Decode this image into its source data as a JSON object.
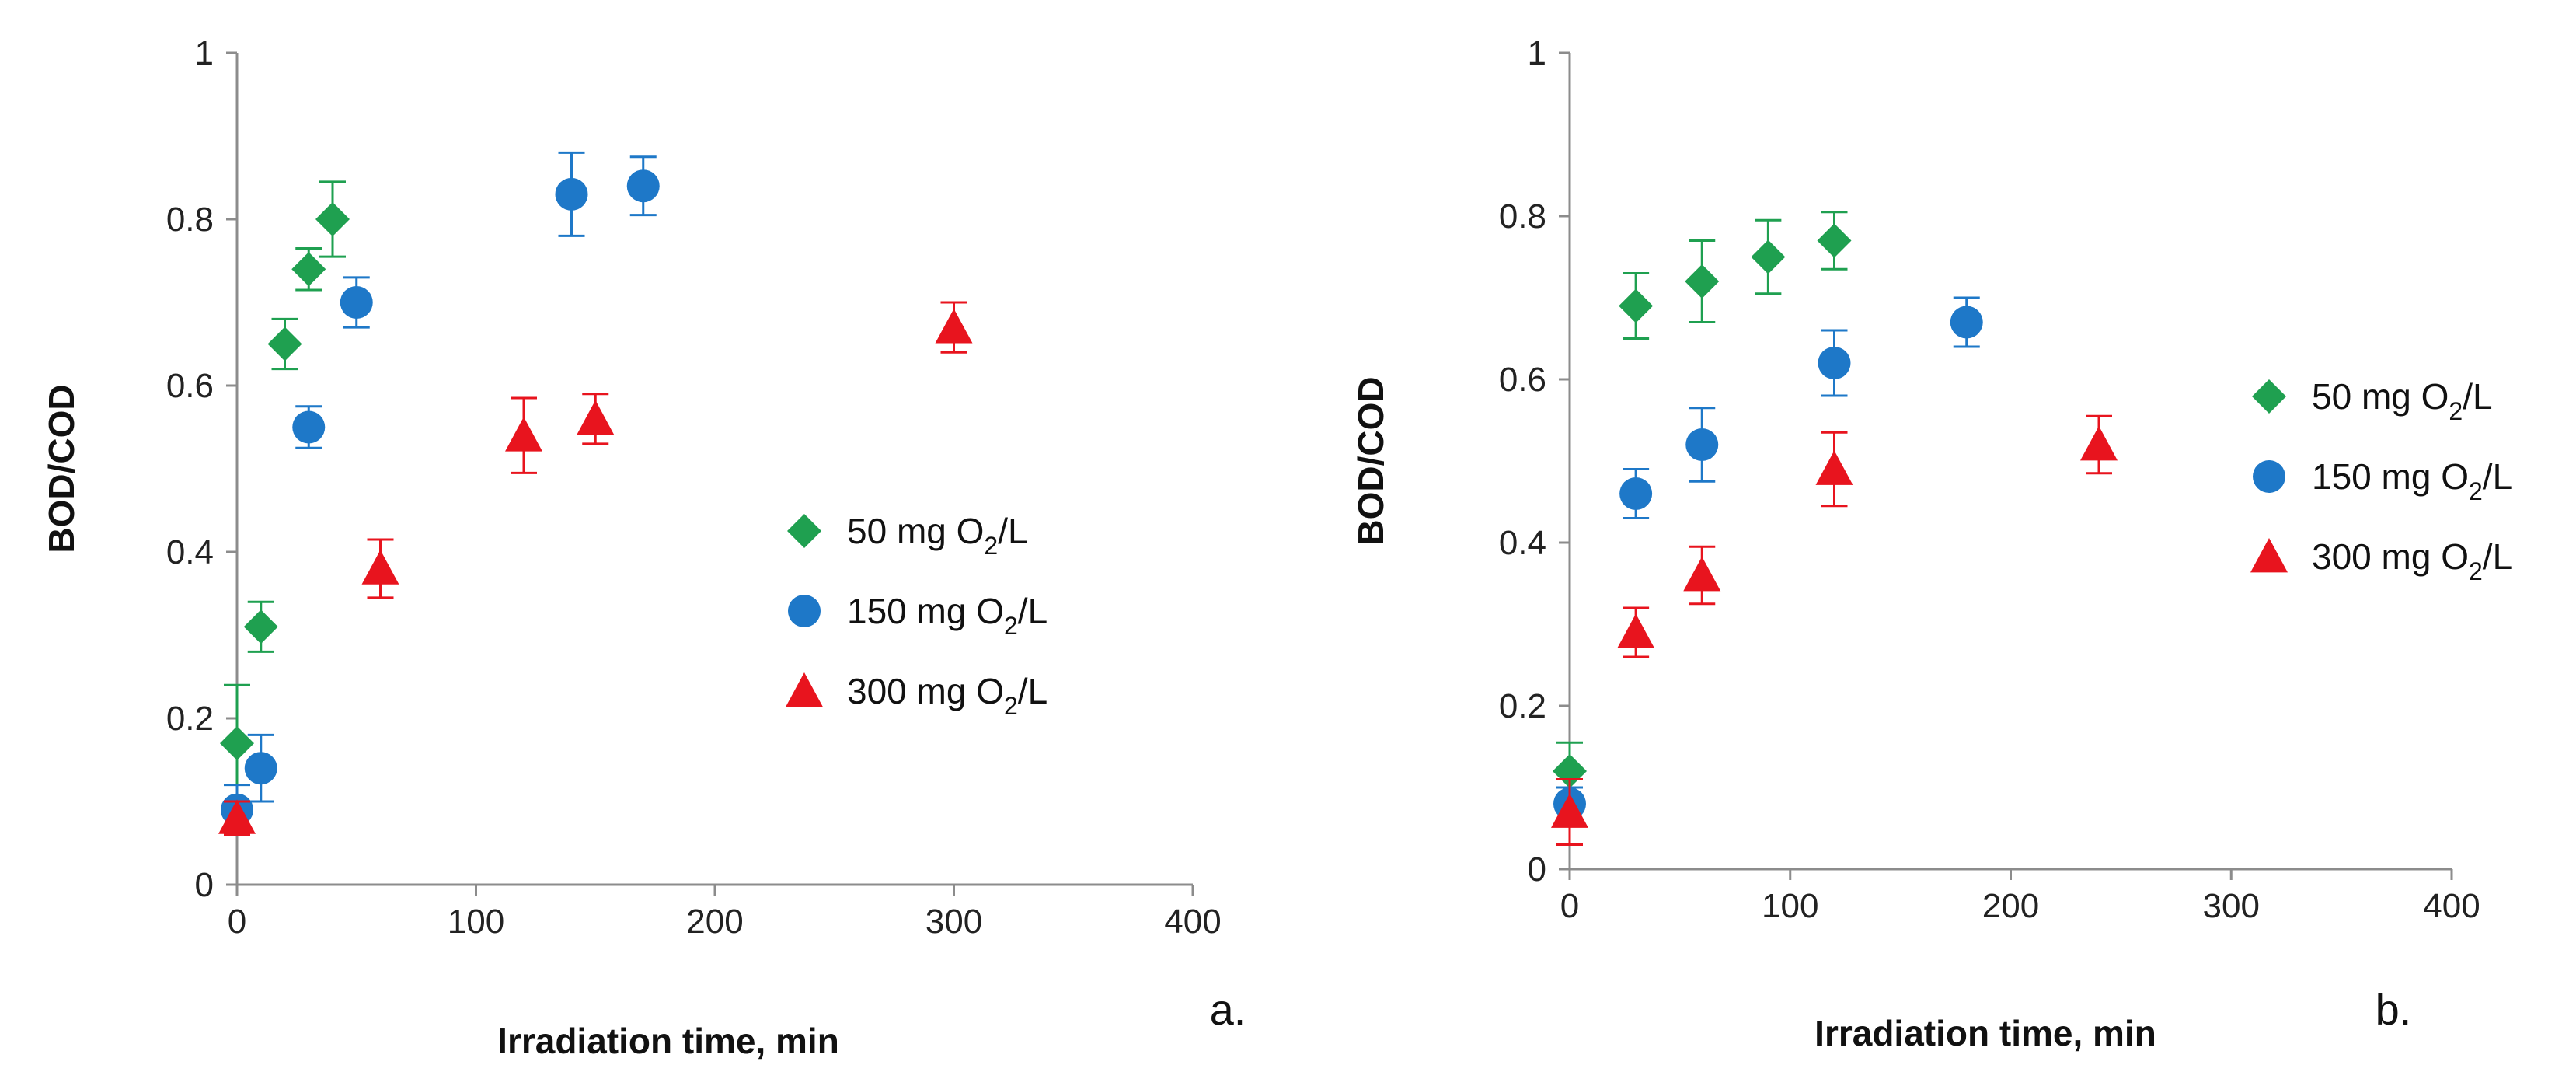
{
  "chart_data": [
    {
      "type": "scatter",
      "panel_label": "a.",
      "xlabel": "Irradiation time, min",
      "ylabel": "BOD/COD",
      "xlim": [
        0,
        400
      ],
      "ylim": [
        0,
        1
      ],
      "xticks": [
        "0",
        "100",
        "200",
        "300",
        "400"
      ],
      "yticks": [
        "0",
        "0.2",
        "0.4",
        "0.6",
        "0.8",
        "1"
      ],
      "legend_position": "center-right",
      "series": [
        {
          "name": "50 mg O2/L",
          "label_prefix": "50 mg O",
          "label_sub": "2",
          "label_suffix": "/L",
          "marker": "diamond",
          "color": "#1fa050",
          "x": [
            0,
            10,
            20,
            30,
            40
          ],
          "y": [
            0.17,
            0.31,
            0.65,
            0.74,
            0.8
          ],
          "err": [
            0.07,
            0.03,
            0.03,
            0.025,
            0.045
          ]
        },
        {
          "name": "150 mg O2/L",
          "label_prefix": "150 mg O",
          "label_sub": "2",
          "label_suffix": "/L",
          "marker": "circle",
          "color": "#1e78c8",
          "x": [
            0,
            10,
            30,
            50,
            140,
            170
          ],
          "y": [
            0.09,
            0.14,
            0.55,
            0.7,
            0.83,
            0.84
          ],
          "err": [
            0.03,
            0.04,
            0.025,
            0.03,
            0.05,
            0.035
          ]
        },
        {
          "name": "300 mg O2/L",
          "label_prefix": "300 mg O",
          "label_sub": "2",
          "label_suffix": "/L",
          "marker": "triangle",
          "color": "#e8141e",
          "x": [
            0,
            60,
            120,
            150,
            300
          ],
          "y": [
            0.08,
            0.38,
            0.54,
            0.56,
            0.67
          ],
          "err": [
            0.02,
            0.035,
            0.045,
            0.03,
            0.03
          ]
        }
      ]
    },
    {
      "type": "scatter",
      "panel_label": "b.",
      "xlabel": "Irradiation  time, min",
      "ylabel": "BOD/COD",
      "xlim": [
        0,
        400
      ],
      "ylim": [
        0,
        1
      ],
      "xticks": [
        "0",
        "100",
        "200",
        "300",
        "400"
      ],
      "yticks": [
        "0",
        "0.2",
        "0.4",
        "0.6",
        "0.8",
        "1"
      ],
      "legend_position": "center-right",
      "series": [
        {
          "name": "50 mg O2/L",
          "label_prefix": "50 mg O",
          "label_sub": "2",
          "label_suffix": "/L",
          "marker": "diamond",
          "color": "#1fa050",
          "x": [
            0,
            30,
            60,
            90,
            120
          ],
          "y": [
            0.12,
            0.69,
            0.72,
            0.75,
            0.77
          ],
          "err": [
            0.035,
            0.04,
            0.05,
            0.045,
            0.035
          ]
        },
        {
          "name": "150 mg O2/L",
          "label_prefix": "150 mg O",
          "label_sub": "2",
          "label_suffix": "/L",
          "marker": "circle",
          "color": "#1e78c8",
          "x": [
            0,
            30,
            60,
            120,
            180
          ],
          "y": [
            0.08,
            0.46,
            0.52,
            0.62,
            0.67
          ],
          "err": [
            0.02,
            0.03,
            0.045,
            0.04,
            0.03
          ]
        },
        {
          "name": "300 mg O2/L",
          "label_prefix": "300 mg O",
          "label_sub": "2",
          "label_suffix": "/L",
          "marker": "triangle",
          "color": "#e8141e",
          "x": [
            0,
            30,
            60,
            120,
            240
          ],
          "y": [
            0.07,
            0.29,
            0.36,
            0.49,
            0.52
          ],
          "err": [
            0.04,
            0.03,
            0.035,
            0.045,
            0.035
          ]
        }
      ]
    }
  ]
}
